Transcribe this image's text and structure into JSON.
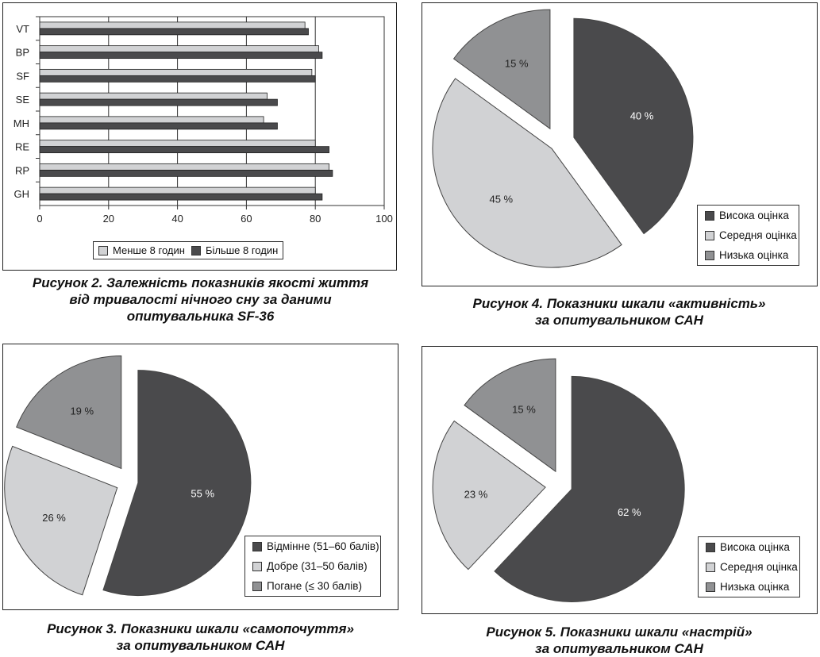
{
  "colors": {
    "dark": "#4a4a4c",
    "light": "#d1d2d4",
    "mid": "#909193"
  },
  "chart_data": [
    {
      "id": "fig2",
      "type": "bar",
      "orientation": "horizontal",
      "categories": [
        "VT",
        "BP",
        "SF",
        "SE",
        "MH",
        "RE",
        "RP",
        "GH"
      ],
      "series": [
        {
          "name": "Менше 8 годин",
          "values": [
            77,
            81,
            79,
            66,
            65,
            80,
            84,
            80
          ]
        },
        {
          "name": "Більше 8 годин",
          "values": [
            78,
            82,
            80,
            69,
            69,
            84,
            85,
            82
          ]
        }
      ],
      "xlim": [
        0,
        100
      ],
      "xticks": [
        "0",
        "20",
        "40",
        "60",
        "80",
        "100"
      ],
      "grid": true,
      "legend_position": "bottom",
      "caption": [
        "Рисунок 2. Залежність показників якості життя",
        "від тривалості нічного сну за даними",
        "опитувальника SF-36"
      ]
    },
    {
      "id": "fig4",
      "type": "pie",
      "slices": [
        {
          "name": "Висока оцінка",
          "value": 40,
          "label": "40 %"
        },
        {
          "name": "Середня оцінка",
          "value": 45,
          "label": "45 %"
        },
        {
          "name": "Низька оцінка",
          "value": 15,
          "label": "15 %"
        }
      ],
      "legend_position": "bottom-right",
      "caption": [
        "Рисунок 4. Показники шкали «активність»",
        "за опитувальником САН"
      ]
    },
    {
      "id": "fig3",
      "type": "pie",
      "slices": [
        {
          "name": "Відмінне (51–60 балів)",
          "value": 55,
          "label": "55 %"
        },
        {
          "name": "Добре (31–50 балів)",
          "value": 26,
          "label": "26 %"
        },
        {
          "name": "Погане (≤ 30 балів)",
          "value": 19,
          "label": "19 %"
        }
      ],
      "legend_position": "bottom-right",
      "caption": [
        "Рисунок 3. Показники шкали «самопочуття»",
        "за опитувальником САН"
      ]
    },
    {
      "id": "fig5",
      "type": "pie",
      "slices": [
        {
          "name": "Висока оцінка",
          "value": 62,
          "label": "62 %"
        },
        {
          "name": "Середня оцінка",
          "value": 23,
          "label": "23 %"
        },
        {
          "name": "Низька оцінка",
          "value": 15,
          "label": "15 %"
        }
      ],
      "legend_position": "bottom-right",
      "caption": [
        "Рисунок 5. Показники шкали «настрій»",
        "за опитувальником САН"
      ]
    }
  ]
}
